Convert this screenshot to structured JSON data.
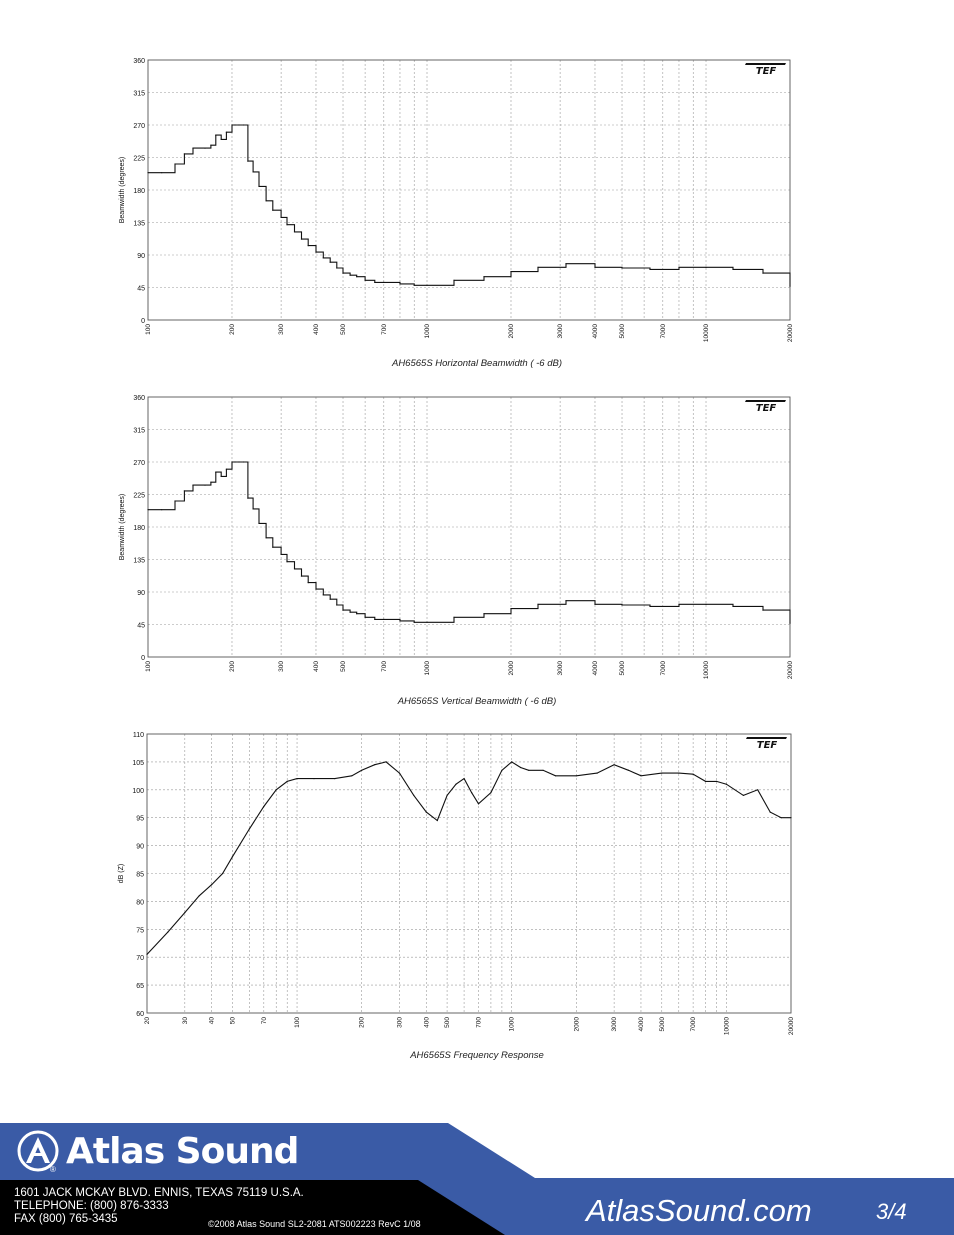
{
  "chart_data": [
    {
      "type": "line",
      "caption": "AH6565S Horizontal Beamwidth ( -6 dB)",
      "ylabel": "Beamwidth (degrees)",
      "xlabel": "",
      "xscale": "log",
      "xlim": [
        100,
        20000
      ],
      "ylim": [
        0,
        360
      ],
      "xticks": [
        100,
        200,
        300,
        400,
        500,
        700,
        1000,
        2000,
        3000,
        4000,
        5000,
        7000,
        10000,
        20000
      ],
      "xtick_labels": [
        "100",
        "200",
        "300",
        "400",
        "500",
        "700",
        "1000",
        "2000",
        "3000",
        "4000",
        "5000",
        "7000",
        "10000",
        "20000"
      ],
      "yticks": [
        0,
        45,
        90,
        135,
        180,
        225,
        270,
        315,
        360
      ],
      "ytick_labels": [
        "0",
        "45",
        "90",
        "135",
        "180",
        "225",
        "270",
        "315",
        "360"
      ],
      "grid": true,
      "logo": "TEF",
      "series": [
        {
          "x": [
            100,
            112,
            125,
            135,
            145,
            160,
            168,
            175,
            183,
            191,
            200,
            205,
            212,
            220,
            228,
            238,
            250,
            265,
            280,
            300,
            315,
            335,
            355,
            375,
            400,
            425,
            450,
            475,
            500,
            530,
            560,
            600,
            650,
            700,
            800,
            900,
            1000,
            1250,
            1600,
            2000,
            2500,
            3150,
            4000,
            5000,
            6300,
            8000,
            10000,
            12500,
            16000,
            20000
          ],
          "y": [
            204,
            204,
            216,
            230,
            238,
            238,
            242,
            256,
            250,
            260,
            270,
            270,
            270,
            270,
            220,
            205,
            185,
            165,
            152,
            142,
            132,
            122,
            112,
            103,
            94,
            86,
            80,
            72,
            65,
            62,
            60,
            55,
            52,
            52,
            50,
            48,
            48,
            55,
            60,
            67,
            73,
            78,
            73,
            72,
            70,
            73,
            73,
            70,
            65,
            47
          ]
        }
      ]
    },
    {
      "type": "line",
      "caption": "AH6565S Vertical Beamwidth ( -6 dB)",
      "ylabel": "Beamwidth (degrees)",
      "xlabel": "",
      "xscale": "log",
      "xlim": [
        100,
        20000
      ],
      "ylim": [
        0,
        360
      ],
      "xticks": [
        100,
        200,
        300,
        400,
        500,
        700,
        1000,
        2000,
        3000,
        4000,
        5000,
        7000,
        10000,
        20000
      ],
      "xtick_labels": [
        "100",
        "200",
        "300",
        "400",
        "500",
        "700",
        "1000",
        "2000",
        "3000",
        "4000",
        "5000",
        "7000",
        "10000",
        "20000"
      ],
      "yticks": [
        0,
        45,
        90,
        135,
        180,
        225,
        270,
        315,
        360
      ],
      "ytick_labels": [
        "0",
        "45",
        "90",
        "135",
        "180",
        "225",
        "270",
        "315",
        "360"
      ],
      "grid": true,
      "logo": "TEF",
      "series": [
        {
          "x": [
            100,
            112,
            125,
            135,
            145,
            160,
            168,
            175,
            183,
            191,
            200,
            205,
            212,
            220,
            228,
            238,
            250,
            265,
            280,
            300,
            315,
            335,
            355,
            375,
            400,
            425,
            450,
            475,
            500,
            530,
            560,
            600,
            650,
            700,
            800,
            900,
            1000,
            1250,
            1600,
            2000,
            2500,
            3150,
            4000,
            5000,
            6300,
            8000,
            10000,
            12500,
            16000,
            20000
          ],
          "y": [
            204,
            204,
            216,
            230,
            238,
            238,
            242,
            256,
            250,
            260,
            270,
            270,
            270,
            270,
            220,
            205,
            185,
            165,
            152,
            142,
            132,
            122,
            112,
            103,
            94,
            86,
            80,
            72,
            65,
            62,
            60,
            55,
            52,
            52,
            50,
            48,
            48,
            55,
            60,
            67,
            73,
            78,
            73,
            72,
            70,
            73,
            73,
            70,
            65,
            47
          ]
        }
      ]
    },
    {
      "type": "line",
      "caption": "AH6565S Frequency Response",
      "ylabel": "dB (Z)",
      "xlabel": "",
      "xscale": "log",
      "xlim": [
        20,
        20000
      ],
      "ylim": [
        60,
        110
      ],
      "xticks": [
        20,
        30,
        40,
        50,
        70,
        100,
        200,
        300,
        400,
        500,
        700,
        1000,
        2000,
        3000,
        4000,
        5000,
        7000,
        10000,
        20000
      ],
      "xtick_labels": [
        "20",
        "30",
        "40",
        "50",
        "70",
        "100",
        "200",
        "300",
        "400",
        "500",
        "700",
        "1000",
        "2000",
        "3000",
        "4000",
        "5000",
        "7000",
        "10000",
        "20000"
      ],
      "yticks": [
        60,
        65,
        70,
        75,
        80,
        85,
        90,
        95,
        100,
        105,
        110
      ],
      "ytick_labels": [
        "60",
        "65",
        "70",
        "75",
        "80",
        "85",
        "90",
        "95",
        "100",
        "105",
        "110"
      ],
      "grid": true,
      "logo": "TEF",
      "series": [
        {
          "x": [
            20,
            25,
            30,
            35,
            40,
            45,
            50,
            60,
            70,
            80,
            90,
            100,
            120,
            150,
            180,
            200,
            230,
            260,
            300,
            350,
            400,
            450,
            500,
            550,
            600,
            650,
            700,
            800,
            900,
            1000,
            1100,
            1200,
            1400,
            1600,
            2000,
            2500,
            3000,
            3500,
            4000,
            5000,
            6000,
            7000,
            8000,
            9000,
            10000,
            12000,
            14000,
            16000,
            18000,
            20000
          ],
          "y": [
            70.5,
            74.5,
            78,
            81,
            83,
            85,
            88,
            93,
            97,
            100,
            101.5,
            102,
            102,
            102,
            102.5,
            103.5,
            104.5,
            105,
            103,
            99,
            96,
            94.5,
            99,
            101,
            102,
            99.5,
            97.5,
            99.5,
            103.5,
            105,
            104,
            103.5,
            103.5,
            102.5,
            102.5,
            103,
            104.5,
            103.5,
            102.5,
            103,
            103,
            102.8,
            101.5,
            101.5,
            101,
            99,
            100,
            96,
            95,
            95
          ]
        }
      ]
    }
  ],
  "footer": {
    "brand": "Atlas Sound",
    "registered": "®",
    "address_line1": "1601 JACK MCKAY BLVD. ENNIS, TEXAS 75119  U.S.A.",
    "address_line2": "TELEPHONE: (800) 876-3333",
    "address_line3": "FAX (800) 765-3435",
    "copyright": "©2008 Atlas Sound   SL2-2081   ATS002223 RevC 1/08",
    "website": "AtlasSound.com",
    "page_number": "3/4",
    "colors": {
      "blue": "#3a5ba6",
      "black": "#000000"
    }
  }
}
